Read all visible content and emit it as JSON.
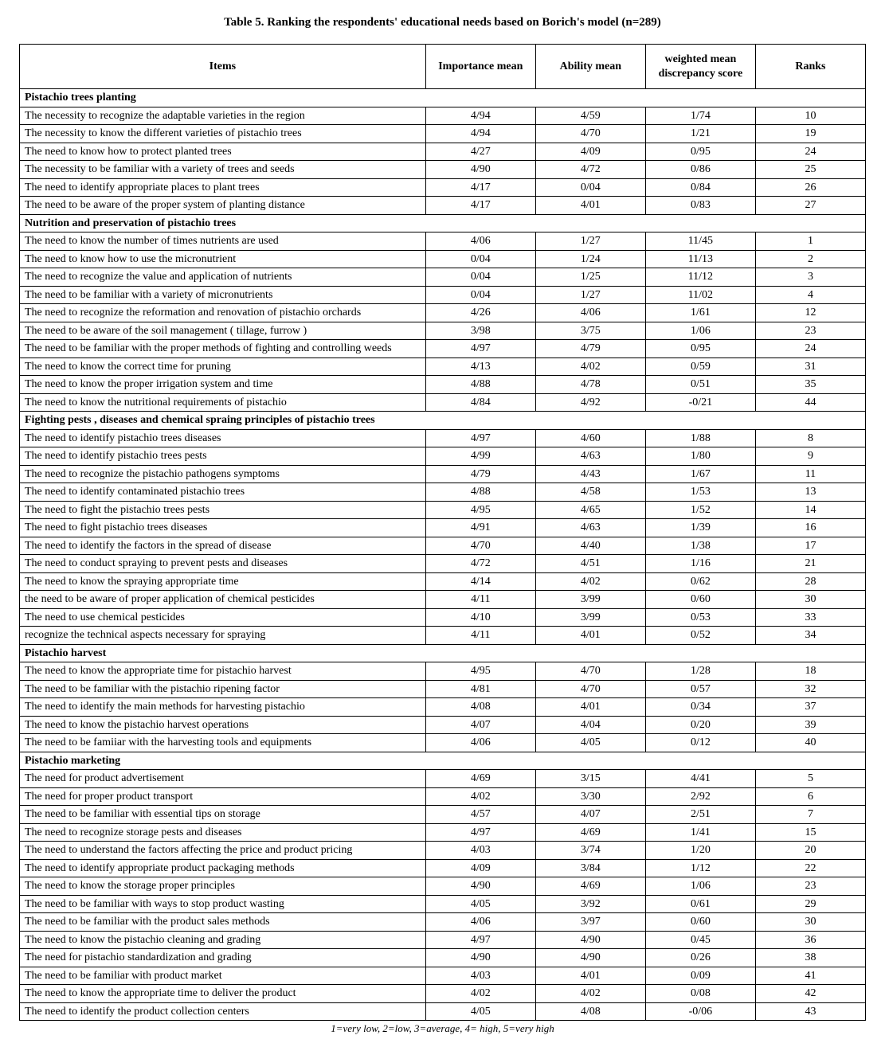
{
  "title": "Table 5. Ranking the respondents' educational needs based on Borich's model (n=289)",
  "columns": {
    "items": "Items",
    "importance": "Importance mean",
    "ability": "Ability mean",
    "wmds": "weighted mean discrepancy score",
    "ranks": "Ranks"
  },
  "footnote": "1=very low, 2=low, 3=average, 4= high, 5=very high",
  "sections": [
    {
      "title": "Pistachio trees planting",
      "rows": [
        {
          "item": "The necessity  to recognize the adaptable varieties in the region",
          "imp": "4/94",
          "abl": "4/59",
          "wmds": "1/74",
          "rank": "10"
        },
        {
          "item": "The necessity to know the different varieties of pistachio trees",
          "imp": "4/94",
          "abl": "4/70",
          "wmds": "1/21",
          "rank": "19"
        },
        {
          "item": "The need to know how to protect planted trees",
          "imp": "4/27",
          "abl": "4/09",
          "wmds": "0/95",
          "rank": "24"
        },
        {
          "item": "The necessity to be familiar with a variety of trees and seeds",
          "imp": "4/90",
          "abl": "4/72",
          "wmds": "0/86",
          "rank": "25"
        },
        {
          "item": "The need to identify appropriate places to plant trees",
          "imp": "4/17",
          "abl": "0/04",
          "wmds": "0/84",
          "rank": "26"
        },
        {
          "item": "The need to be aware of the proper system of planting distance",
          "imp": "4/17",
          "abl": "4/01",
          "wmds": "0/83",
          "rank": "27"
        }
      ]
    },
    {
      "title": "Nutrition and preservation of pistachio trees",
      "rows": [
        {
          "item": "The need to know the number of times nutrients are used",
          "imp": "4/06",
          "abl": "1/27",
          "wmds": "11/45",
          "rank": "1"
        },
        {
          "item": "The need to know how to use the micronutrient",
          "imp": "0/04",
          "abl": "1/24",
          "wmds": "11/13",
          "rank": "2"
        },
        {
          "item": "The need to recognize the value and application of nutrients",
          "imp": "0/04",
          "abl": "1/25",
          "wmds": "11/12",
          "rank": "3"
        },
        {
          "item": "The need to be familiar with a variety of micronutrients",
          "imp": "0/04",
          "abl": "1/27",
          "wmds": "11/02",
          "rank": "4"
        },
        {
          "item": "The need to recognize the reformation and renovation of pistachio orchards",
          "imp": "4/26",
          "abl": "4/06",
          "wmds": "1/61",
          "rank": "12"
        },
        {
          "item": "The need to be aware of the soil management ( tillage, furrow )",
          "imp": "3/98",
          "abl": "3/75",
          "wmds": "1/06",
          "rank": "23"
        },
        {
          "item": "The need to be familiar with the proper methods of fighting and controlling weeds",
          "imp": "4/97",
          "abl": "4/79",
          "wmds": "0/95",
          "rank": "24"
        },
        {
          "item": "The need to know the correct time for pruning",
          "imp": "4/13",
          "abl": "4/02",
          "wmds": "0/59",
          "rank": "31"
        },
        {
          "item": "The need to know the proper irrigation system and time",
          "imp": "4/88",
          "abl": "4/78",
          "wmds": "0/51",
          "rank": "35"
        },
        {
          "item": "The need to know the nutritional requirements of pistachio",
          "imp": "4/84",
          "abl": "4/92",
          "wmds": "-0/21",
          "rank": "44"
        }
      ]
    },
    {
      "title": "Fighting pests , diseases and chemical spraing  principles of pistachio trees",
      "rows": [
        {
          "item": "The need to identify pistachio trees diseases",
          "imp": "4/97",
          "abl": "4/60",
          "wmds": "1/88",
          "rank": "8"
        },
        {
          "item": "The need to identify pistachio trees pests",
          "imp": "4/99",
          "abl": "4/63",
          "wmds": "1/80",
          "rank": "9"
        },
        {
          "item": "The need to recognize the pistachio pathogens symptoms",
          "imp": "4/79",
          "abl": "4/43",
          "wmds": "1/67",
          "rank": "11"
        },
        {
          "item": "The need to identify contaminated pistachio trees",
          "imp": "4/88",
          "abl": "4/58",
          "wmds": "1/53",
          "rank": "13"
        },
        {
          "item": "The need to fight the pistachio trees pests",
          "imp": "4/95",
          "abl": "4/65",
          "wmds": "1/52",
          "rank": "14"
        },
        {
          "item": "The need to fight pistachio trees diseases",
          "imp": "4/91",
          "abl": "4/63",
          "wmds": "1/39",
          "rank": "16"
        },
        {
          "item": "The need to identify the factors in the spread of disease",
          "imp": "4/70",
          "abl": "4/40",
          "wmds": "1/38",
          "rank": "17"
        },
        {
          "item": "The need to conduct spraying to prevent pests and diseases",
          "imp": "4/72",
          "abl": "4/51",
          "wmds": "1/16",
          "rank": "21"
        },
        {
          "item": "The need to know the spraying appropriate time",
          "imp": "4/14",
          "abl": "4/02",
          "wmds": "0/62",
          "rank": "28"
        },
        {
          "item": "the need to be aware of proper application of chemical pesticides",
          "imp": "4/11",
          "abl": "3/99",
          "wmds": "0/60",
          "rank": "30"
        },
        {
          "item": "The need to use chemical pesticides",
          "imp": "4/10",
          "abl": "3/99",
          "wmds": "0/53",
          "rank": "33"
        },
        {
          "item": "recognize the technical aspects necessary for spraying",
          "imp": "4/11",
          "abl": "4/01",
          "wmds": "0/52",
          "rank": "34"
        }
      ]
    },
    {
      "title": "Pistachio harvest",
      "rows": [
        {
          "item": "The need to know the appropriate time for pistachio harvest",
          "imp": "4/95",
          "abl": "4/70",
          "wmds": "1/28",
          "rank": "18"
        },
        {
          "item": "The need to be familiar with the pistachio ripening factor",
          "imp": "4/81",
          "abl": "4/70",
          "wmds": "0/57",
          "rank": "32"
        },
        {
          "item": "The need to identify the main methods for harvesting pistachio",
          "imp": "4/08",
          "abl": "4/01",
          "wmds": "0/34",
          "rank": "37"
        },
        {
          "item": "The need to know the pistachio harvest operations",
          "imp": "4/07",
          "abl": "4/04",
          "wmds": "0/20",
          "rank": "39"
        },
        {
          "item": "The need to be famiiar with the harvesting tools and equipments",
          "imp": "4/06",
          "abl": "4/05",
          "wmds": "0/12",
          "rank": "40"
        }
      ]
    },
    {
      "title": "Pistachio marketing",
      "rows": [
        {
          "item": "The need for product advertisement",
          "imp": "4/69",
          "abl": "3/15",
          "wmds": "4/41",
          "rank": "5"
        },
        {
          "item": "The need for proper product transport",
          "imp": "4/02",
          "abl": "3/30",
          "wmds": "2/92",
          "rank": "6"
        },
        {
          "item": "The need to be familiar with essential tips on storage",
          "imp": "4/57",
          "abl": "4/07",
          "wmds": "2/51",
          "rank": "7"
        },
        {
          "item": "The need to recognize storage pests and diseases",
          "imp": "4/97",
          "abl": "4/69",
          "wmds": "1/41",
          "rank": "15"
        },
        {
          "item": "The need to understand the factors affecting the price and product pricing",
          "imp": "4/03",
          "abl": "3/74",
          "wmds": "1/20",
          "rank": "20"
        },
        {
          "item": "The need to identify appropriate product packaging methods",
          "imp": "4/09",
          "abl": "3/84",
          "wmds": "1/12",
          "rank": "22"
        },
        {
          "item": "The need to know the storage proper principles",
          "imp": "4/90",
          "abl": "4/69",
          "wmds": "1/06",
          "rank": "23"
        },
        {
          "item": "The need to be familiar with ways to stop product wasting",
          "imp": "4/05",
          "abl": "3/92",
          "wmds": "0/61",
          "rank": "29"
        },
        {
          "item": "The need to be familiar with the product sales methods",
          "imp": "4/06",
          "abl": "3/97",
          "wmds": "0/60",
          "rank": "30"
        },
        {
          "item": "The need to know the pistachio cleaning and grading",
          "imp": "4/97",
          "abl": "4/90",
          "wmds": "0/45",
          "rank": "36"
        },
        {
          "item": "The need for pistachio standardization and grading",
          "imp": "4/90",
          "abl": "4/90",
          "wmds": "0/26",
          "rank": "38"
        },
        {
          "item": "The need to be familiar with product market",
          "imp": "4/03",
          "abl": "4/01",
          "wmds": "0/09",
          "rank": "41"
        },
        {
          "item": "The need to know the appropriate time to deliver the product",
          "imp": "4/02",
          "abl": "4/02",
          "wmds": "0/08",
          "rank": "42"
        },
        {
          "item": "The need  to identify the product collection centers",
          "imp": "4/05",
          "abl": "4/08",
          "wmds": "-0/06",
          "rank": "43"
        }
      ]
    }
  ]
}
